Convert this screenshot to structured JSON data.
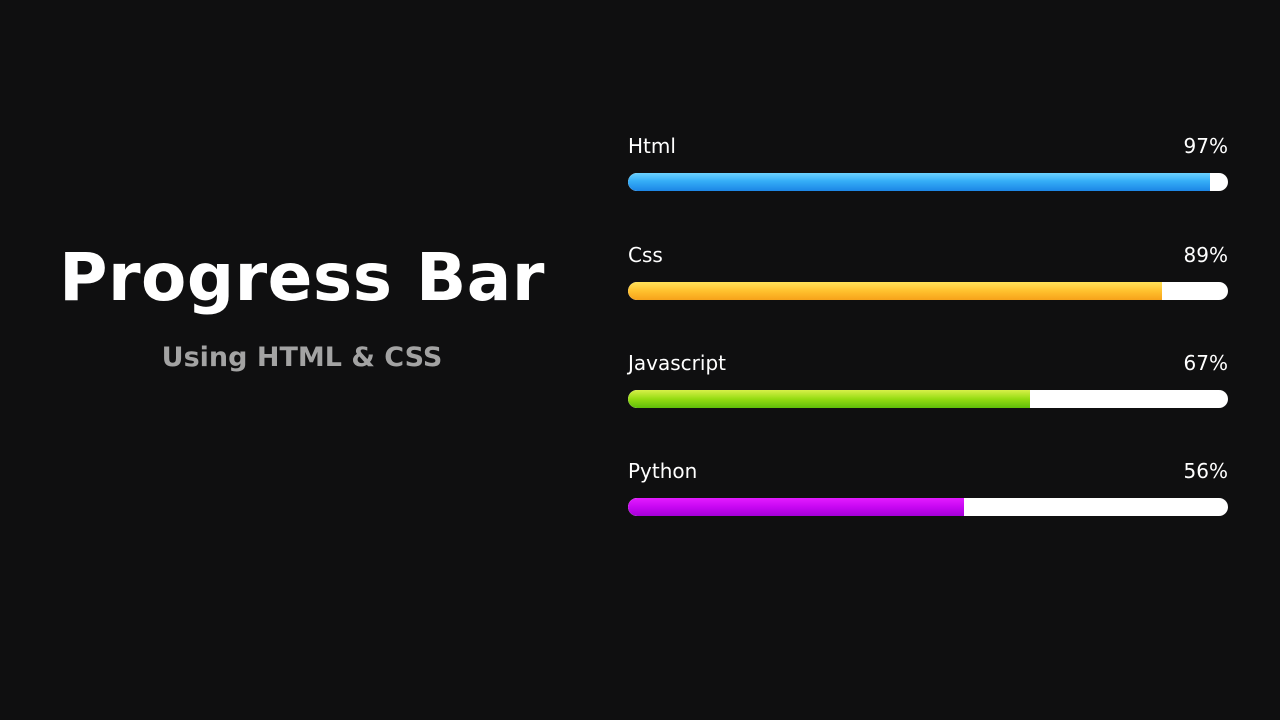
{
  "header": {
    "title": "Progress Bar",
    "subtitle": "Using HTML & CSS"
  },
  "skills": [
    {
      "name": "Html",
      "percent_label": "97%",
      "percent": 97,
      "color": "#35aef7"
    },
    {
      "name": "Css",
      "percent_label": "89%",
      "percent": 89,
      "color": "#ffc12e"
    },
    {
      "name": "Javascript",
      "percent_label": "67%",
      "percent": 67,
      "color": "#95dc12"
    },
    {
      "name": "Python",
      "percent_label": "56%",
      "percent": 56,
      "color": "#c707f2"
    }
  ],
  "colors": {
    "background": "#0f0f10",
    "title": "#ffffff",
    "subtitle": "#a3a3a3",
    "track": "#ffffff"
  }
}
